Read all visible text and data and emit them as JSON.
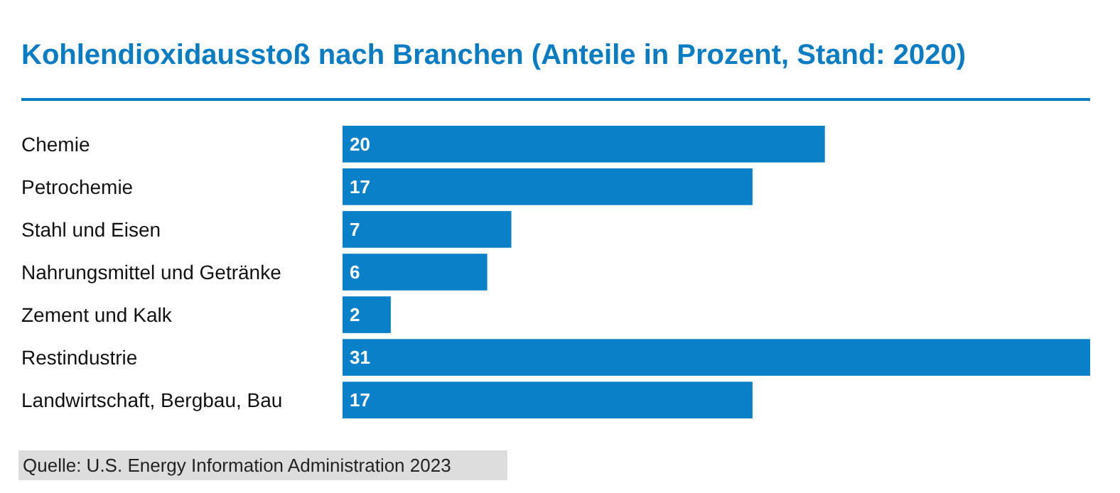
{
  "chart_data": {
    "type": "bar",
    "orientation": "horizontal",
    "title": "Kohlendioxidausstoß nach Branchen (Anteile in Prozent, Stand: 2020)",
    "categories": [
      "Chemie",
      "Petrochemie",
      "Stahl und Eisen",
      "Nahrungsmittel und Getränke",
      "Zement und Kalk",
      "Restindustrie",
      "Landwirtschaft, Bergbau, Bau"
    ],
    "values": [
      20,
      17,
      7,
      6,
      2,
      31,
      17
    ],
    "color": "#0a80c8",
    "data_labels": true,
    "annotations": [
      "Quelle: U.S. Energy Information Administration 2023"
    ]
  }
}
